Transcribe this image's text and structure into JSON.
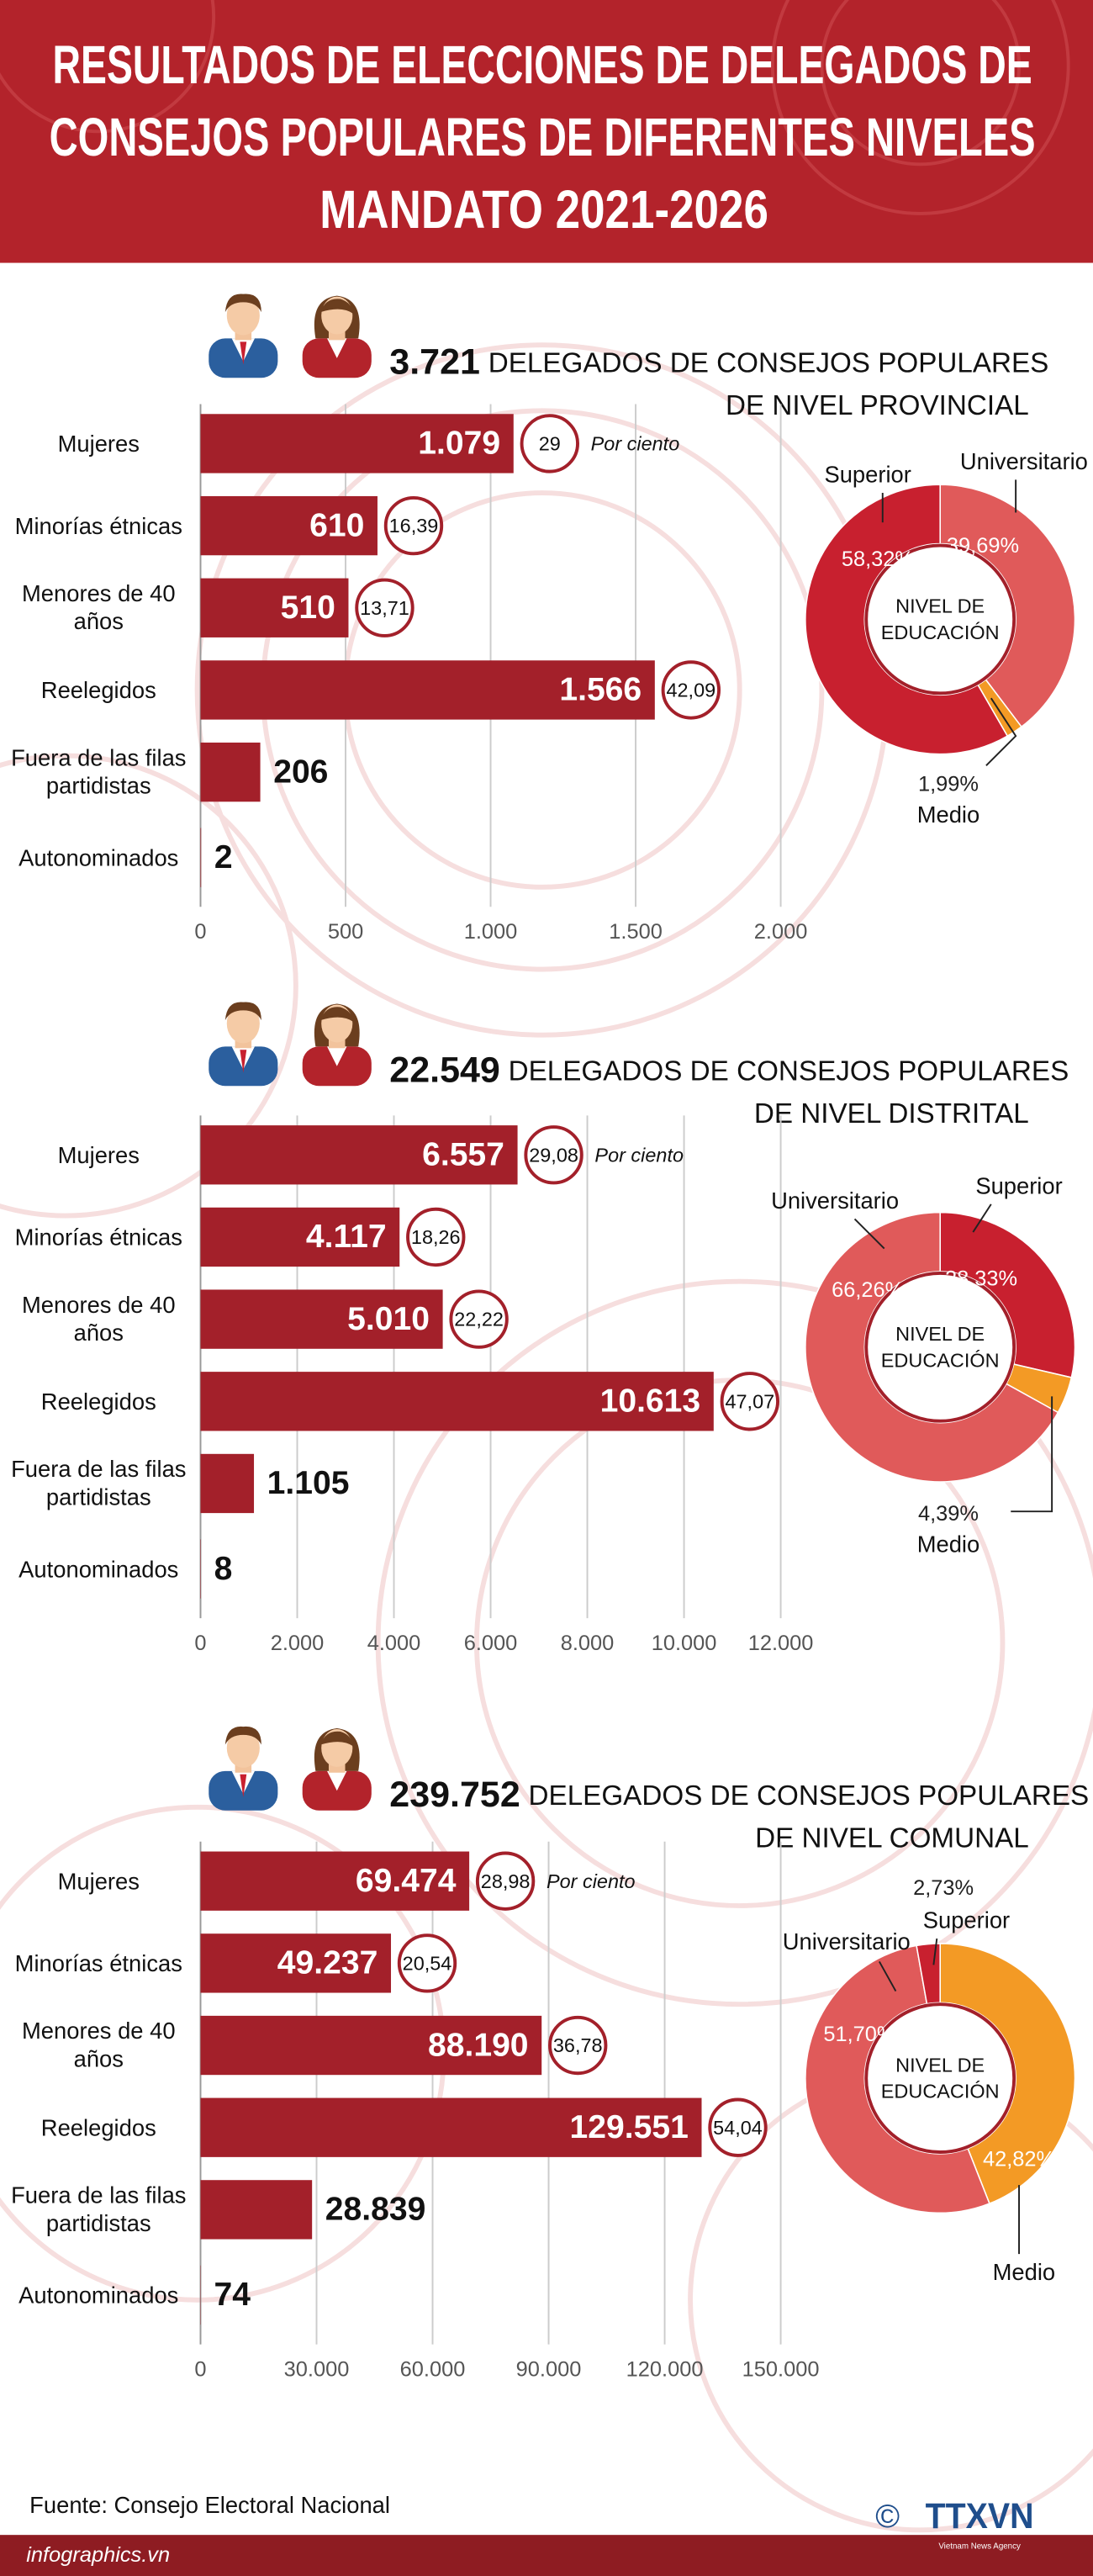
{
  "header": {
    "title": [
      "RESULTADOS DE ELECCIONES DE DELEGADOS DE",
      "CONSEJOS POPULARES DE DIFERENTES NIVELES",
      "MANDATO 2021-2026"
    ]
  },
  "chart_data": [
    {
      "type": "bar",
      "total": "3.721",
      "title": [
        "DELEGADOS DE CONSEJOS POPULARES",
        "DE NIVEL PROVINCIAL"
      ],
      "categories": [
        "Mujeres",
        "Minorías étnicas",
        "Menores de 40 años",
        "Reelegidos",
        "Fuera de las filas partidistas",
        "Autonominados"
      ],
      "values": [
        1079,
        610,
        510,
        1566,
        206,
        2
      ],
      "value_labels": [
        "1.079",
        "610",
        "510",
        "1.566",
        "206",
        "2"
      ],
      "percent": [
        29,
        16.39,
        13.71,
        42.09,
        null,
        null
      ],
      "percent_labels": [
        "29",
        "16,39",
        "13,71",
        "42,09",
        null,
        null
      ],
      "percent_note": "Por ciento",
      "color": "#a3202a",
      "xlim": [
        0,
        2000
      ],
      "xticks": [
        0,
        500,
        {
          "value": 1000,
          "label": "1.000"
        },
        {
          "value": 1500,
          "label": "1.500"
        },
        {
          "value": 2000,
          "label": "2.000"
        }
      ],
      "grid": true
    },
    {
      "type": "pie",
      "center_label": "NIVEL DE EDUCACIÓN",
      "categories": [
        "Universitario",
        "Medio",
        "Superior"
      ],
      "values": [
        39.69,
        1.99,
        58.32
      ],
      "value_labels": [
        "39,69%",
        "1,99%",
        "58,32%"
      ],
      "colors": [
        "#e05a5a",
        "#f39a25",
        "#c8202f"
      ]
    },
    {
      "type": "bar",
      "total": "22.549",
      "title": [
        "DELEGADOS DE CONSEJOS POPULARES",
        "DE NIVEL DISTRITAL"
      ],
      "categories": [
        "Mujeres",
        "Minorías étnicas",
        "Menores de 40 años",
        "Reelegidos",
        "Fuera de las filas partidistas",
        "Autonominados"
      ],
      "values": [
        6557,
        4117,
        5010,
        10613,
        1105,
        8
      ],
      "value_labels": [
        "6.557",
        "4.117",
        "5.010",
        "10.613",
        "1.105",
        "8"
      ],
      "percent": [
        29.08,
        18.26,
        22.22,
        47.07,
        null,
        null
      ],
      "percent_labels": [
        "29,08",
        "18,26",
        "22,22",
        "47,07",
        null,
        null
      ],
      "percent_note": "Por ciento",
      "color": "#a3202a",
      "xlim": [
        0,
        12000
      ],
      "xticks": [
        0,
        {
          "value": 2000,
          "label": "2.000"
        },
        {
          "value": 4000,
          "label": "4.000"
        },
        {
          "value": 6000,
          "label": "6.000"
        },
        {
          "value": 8000,
          "label": "8.000"
        },
        {
          "value": 10000,
          "label": "10.000"
        },
        {
          "value": 12000,
          "label": "12.000"
        }
      ],
      "grid": true
    },
    {
      "type": "pie",
      "center_label": "NIVEL DE EDUCACIÓN",
      "categories": [
        "Superior",
        "Medio",
        "Universitario"
      ],
      "values": [
        28.33,
        4.39,
        66.26
      ],
      "value_labels": [
        "28,33%",
        "4,39%",
        "66,26%"
      ],
      "colors": [
        "#c8202f",
        "#f39a25",
        "#e05a5a"
      ]
    },
    {
      "type": "bar",
      "total": "239.752",
      "title": [
        "DELEGADOS DE CONSEJOS POPULARES",
        "DE NIVEL COMUNAL"
      ],
      "categories": [
        "Mujeres",
        "Minorías étnicas",
        "Menores de 40 años",
        "Reelegidos",
        "Fuera de las filas partidistas",
        "Autonominados"
      ],
      "values": [
        69474,
        49237,
        88190,
        129551,
        28839,
        74
      ],
      "value_labels": [
        "69.474",
        "49.237",
        "88.190",
        "129.551",
        "28.839",
        "74"
      ],
      "percent": [
        28.98,
        20.54,
        36.78,
        54.04,
        null,
        null
      ],
      "percent_labels": [
        "28,98",
        "20,54",
        "36,78",
        "54,04",
        null,
        null
      ],
      "percent_note": "Por ciento",
      "color": "#a3202a",
      "xlim": [
        0,
        150000
      ],
      "xticks": [
        0,
        {
          "value": 30000,
          "label": "30.000"
        },
        {
          "value": 60000,
          "label": "60.000"
        },
        {
          "value": 90000,
          "label": "90.000"
        },
        {
          "value": 120000,
          "label": "120.000"
        },
        {
          "value": 150000,
          "label": "150.000"
        }
      ],
      "grid": true
    },
    {
      "type": "pie",
      "center_label": "NIVEL DE EDUCACIÓN",
      "categories": [
        "Medio",
        "Universitario",
        "Superior"
      ],
      "values": [
        42.82,
        51.7,
        2.73
      ],
      "value_labels": [
        "42,82%",
        "51,70%",
        "2,73%"
      ],
      "colors": [
        "#f39a25",
        "#e05a5a",
        "#c8202f"
      ]
    }
  ],
  "footer": {
    "source": "Fuente: Consejo Electoral Nacional",
    "site": "infographics.vn",
    "copyright": "©",
    "logo": "TTXVN",
    "agency": "Vietnam News Agency"
  }
}
